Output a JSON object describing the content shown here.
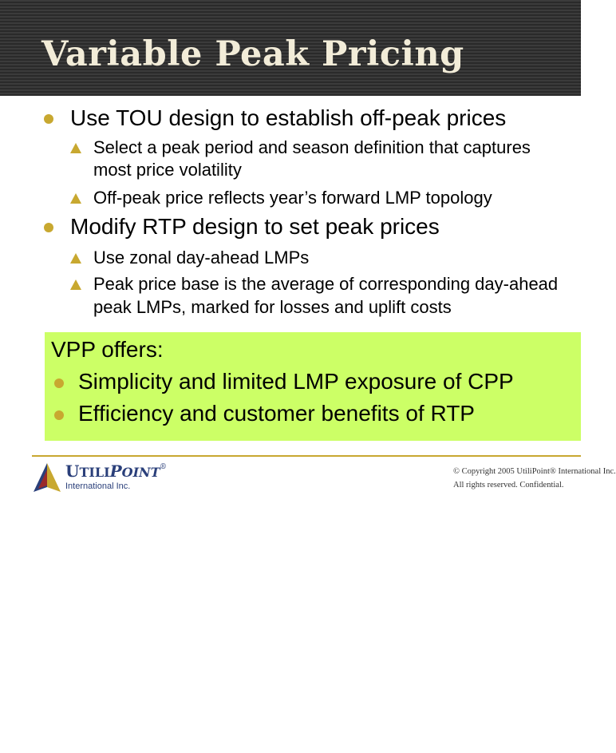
{
  "slide": {
    "title": "Variable Peak Pricing",
    "bullets": [
      {
        "text": "Use TOU design to establish off-peak prices",
        "subbullets": [
          {
            "lines": [
              "Select a peak period and season definition that captures",
              "most price volatility"
            ]
          },
          {
            "lines": [
              "Off-peak price reflects year’s forward LMP topology"
            ]
          }
        ]
      },
      {
        "text": "Modify RTP design to set peak prices",
        "subbullets": [
          {
            "lines": [
              "Use zonal day-ahead LMPs"
            ]
          },
          {
            "lines": [
              "Peak price base is the average of corresponding day-ahead",
              "peak LMPs, marked for losses and uplift costs"
            ]
          }
        ]
      }
    ],
    "callout": {
      "title": "VPP offers:",
      "items": [
        "Simplicity and limited LMP exposure of CPP",
        "Efficiency and customer benefits of RTP"
      ],
      "background": "#ccff66"
    },
    "footer": {
      "logo_name_big_u": "U",
      "logo_name_tili": "TILI",
      "logo_name_big_p": "P",
      "logo_name_oint": "OINT",
      "logo_reg": "®",
      "logo_sub": "International Inc.",
      "copyright_line1": "© Copyright  2005 UtiliPoint® International Inc.",
      "copyright_line2": "All rights reserved. Confidential."
    }
  },
  "colors": {
    "title_bar": "#333333",
    "title_text": "#f2ecd8",
    "bullet_gold": "#c8a830",
    "logo_blue": "#2a3f7a"
  }
}
